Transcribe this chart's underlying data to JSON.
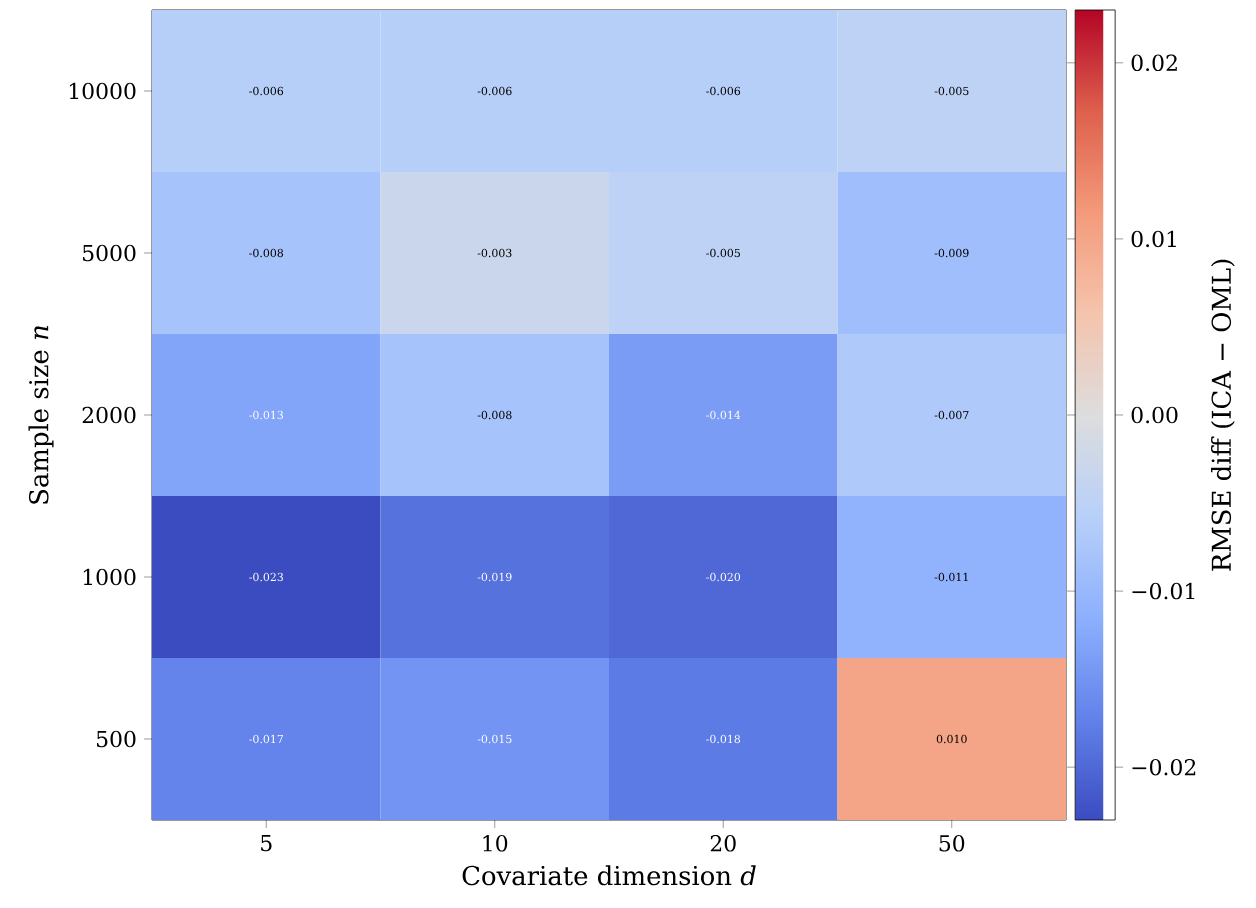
{
  "chart_data": {
    "type": "heatmap",
    "xlabel": "Covariate dimension *d*",
    "ylabel": "Sample size *n*",
    "clabel": "RMSE diff (ICA − OML)",
    "categories": [
      "5",
      "10",
      "20",
      "50"
    ],
    "y_categories": [
      "10000",
      "5000",
      "2000",
      "1000",
      "500"
    ],
    "cells": [
      [
        -0.006,
        -0.006,
        -0.006,
        -0.005
      ],
      [
        -0.008,
        -0.003,
        -0.005,
        -0.009
      ],
      [
        -0.013,
        -0.008,
        -0.014,
        -0.007
      ],
      [
        -0.023,
        -0.019,
        -0.02,
        -0.011
      ],
      [
        -0.017,
        -0.015,
        -0.018,
        0.01
      ]
    ],
    "cell_labels": [
      [
        "-0.006",
        "-0.006",
        "-0.006",
        "-0.005"
      ],
      [
        "-0.008",
        "-0.003",
        "-0.005",
        "-0.009"
      ],
      [
        "-0.013",
        "-0.008",
        "-0.014",
        "-0.007"
      ],
      [
        "-0.023",
        "-0.019",
        "-0.020",
        "-0.011"
      ],
      [
        "-0.017",
        "-0.015",
        "-0.018",
        "0.010"
      ]
    ],
    "clim": [
      -0.023,
      0.023
    ],
    "cticks": [
      {
        "value": -0.02,
        "label": "−0.02"
      },
      {
        "value": -0.01,
        "label": "−0.01"
      },
      {
        "value": 0,
        "label": "0.00"
      },
      0.01,
      0.02
    ]
  }
}
